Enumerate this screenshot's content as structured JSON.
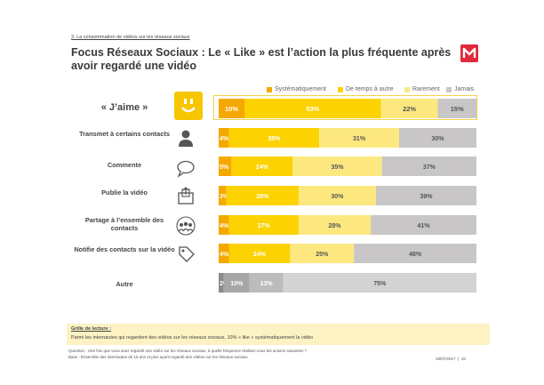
{
  "section": "3. La consommation de vidéos sur les réseaux sociaux",
  "title": "Focus Réseaux Sociaux : Le « Like » est l’action la plus fréquente après avoir regardé une vidéo",
  "colors": {
    "systematic": "#f5a800",
    "sometimes": "#fcd200",
    "rarely": "#fde880",
    "never": "#c8c6c6",
    "autre_sys": "#8a8a8a",
    "autre_some": "#a7a7a7",
    "autre_rare": "#bdbcbc",
    "autre_never": "#d3d3d3"
  },
  "chart_data": {
    "type": "bar",
    "orientation": "horizontal",
    "stacked": true,
    "categories": [
      "« J’aime »",
      "Transmet à certains contacts",
      "Commente",
      "Publie la vidéo",
      "Partage à l’ensemble des contacts",
      "Notifie des contacts sur la vidéo",
      "Autre"
    ],
    "legend_position": "top-right",
    "series": [
      {
        "name": "Systématiquement",
        "values": [
          10,
          4,
          5,
          3,
          4,
          4,
          2
        ],
        "labels": [
          "10%",
          "4%",
          "5%",
          "3%",
          "4%",
          "4%",
          "2%"
        ]
      },
      {
        "name": "De temps à autre",
        "values": [
          53,
          35,
          24,
          28,
          27,
          24,
          10
        ],
        "labels": [
          "53%",
          "35%",
          "24%",
          "28%",
          "27%",
          "24%",
          "10%"
        ]
      },
      {
        "name": "Rarement",
        "values": [
          22,
          31,
          35,
          30,
          28,
          25,
          13
        ],
        "labels": [
          "22%",
          "31%",
          "35%",
          "30%",
          "28%",
          "25%",
          "13%"
        ]
      },
      {
        "name": "Jamais",
        "values": [
          15,
          30,
          37,
          39,
          41,
          48,
          75
        ],
        "labels": [
          "15%",
          "30%",
          "37%",
          "39%",
          "41%",
          "48%",
          "75%"
        ]
      }
    ]
  },
  "icons": [
    "smiley-icon",
    "person-icon",
    "speech-bubble-icon",
    "publish-icon",
    "group-icon",
    "tag-icon"
  ],
  "reading": {
    "heading": "Grille de lecture :",
    "text": "Parmi les internautes qui regardent des vidéos sur les réseaux sociaux, 10% « like » systématiquement la vidéo"
  },
  "footnotes": {
    "question": "Question : Une fois que vous avez regardé une vidéo sur les réseaux sociaux, à quelle fréquence réalisez-vous les actions suivantes ?",
    "base": "Base : Ensemble des internautes de 15 ans et plus ayant regardé des vidéos sur les réseaux sociaux",
    "date": "18/07/2017",
    "page": "15"
  }
}
